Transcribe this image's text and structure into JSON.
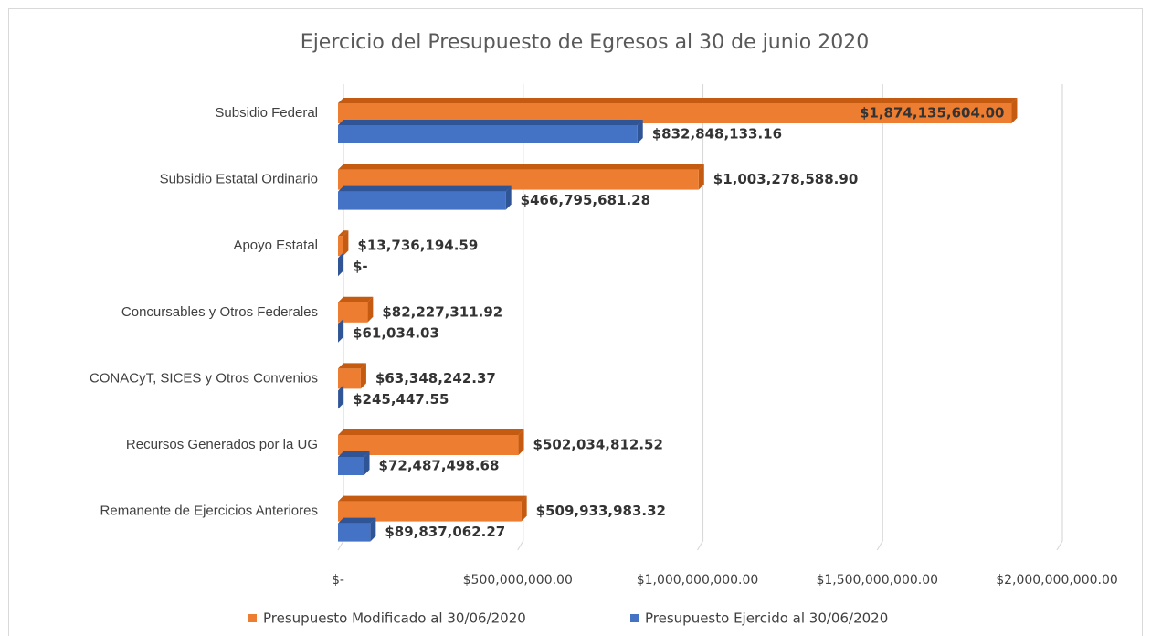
{
  "chart_data": {
    "type": "bar",
    "orientation": "horizontal",
    "title": "Ejercicio del Presupuesto de Egresos al 30 de junio 2020",
    "categories": [
      "Subsidio Federal",
      "Subsidio Estatal Ordinario",
      "Apoyo Estatal",
      "Concursables y Otros Federales",
      "CONACyT, SICES y Otros Convenios",
      "Recursos Generados por la UG",
      "Remanente de Ejercicios Anteriores"
    ],
    "series": [
      {
        "name": "Presupuesto Modificado al 30/06/2020",
        "color": "#ED7D31",
        "side_color": "#C55A11",
        "values": [
          1874135604.0,
          1003278588.9,
          13736194.59,
          82227311.92,
          63348242.37,
          502034812.52,
          509933983.32
        ],
        "value_labels": [
          "$1,874,135,604.00",
          "$1,003,278,588.90",
          "$13,736,194.59",
          "$82,227,311.92",
          "$63,348,242.37",
          "$502,034,812.52",
          "$509,933,983.32"
        ]
      },
      {
        "name": "Presupuesto Ejercido al 30/06/2020",
        "color": "#4472C4",
        "side_color": "#2F5597",
        "values": [
          832848133.16,
          466795681.28,
          0,
          61034.03,
          245447.55,
          72487498.68,
          89837062.27
        ],
        "value_labels": [
          "$832,848,133.16",
          "$466,795,681.28",
          "$-",
          "$61,034.03",
          "$245,447.55",
          "$72,487,498.68",
          "$89,837,062.27"
        ]
      }
    ],
    "xlim": [
      0,
      2000000000
    ],
    "xticks": [
      {
        "value": 0,
        "label": "$-"
      },
      {
        "value": 500000000,
        "label": "$500,000,000.00"
      },
      {
        "value": 1000000000,
        "label": "$1,000,000,000.00"
      },
      {
        "value": 1500000000,
        "label": "$1,500,000,000.00"
      },
      {
        "value": 2000000000,
        "label": "$2,000,000,000.00"
      }
    ],
    "grid": true,
    "legend": "bottom"
  }
}
